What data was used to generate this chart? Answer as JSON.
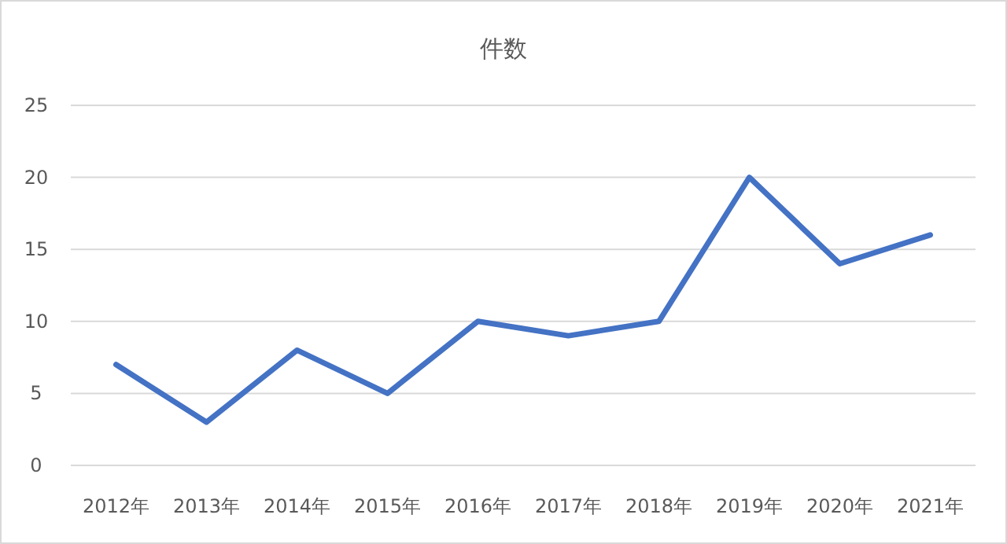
{
  "chart_data": {
    "type": "line",
    "title": "件数",
    "categories": [
      "2012年",
      "2013年",
      "2014年",
      "2015年",
      "2016年",
      "2017年",
      "2018年",
      "2019年",
      "2020年",
      "2021年"
    ],
    "values": [
      7,
      3,
      8,
      5,
      10,
      9,
      10,
      20,
      14,
      16
    ],
    "color": "#4472c4",
    "ylim": [
      0,
      25
    ],
    "yticks": [
      0,
      5,
      10,
      15,
      20,
      25
    ],
    "grid": "y",
    "marker": "none"
  }
}
